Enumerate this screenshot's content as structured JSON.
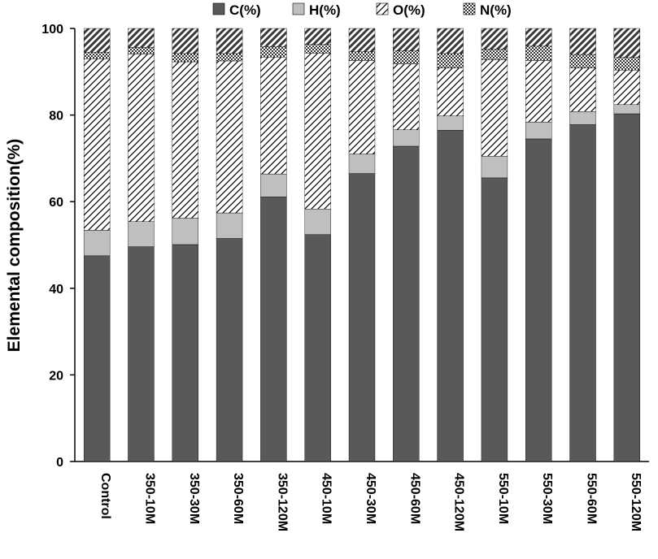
{
  "chart_data": {
    "type": "bar",
    "stacked": true,
    "ylabel": "Elemental composition(%)",
    "ylim": [
      0,
      100
    ],
    "yticks": [
      0,
      20,
      40,
      60,
      80,
      100
    ],
    "grid": false,
    "legend_position": "top",
    "categories": [
      "Control",
      "350-10M",
      "350-30M",
      "350-60M",
      "350-120M",
      "450-10M",
      "450-30M",
      "450-60M",
      "450-120M",
      "550-10M",
      "550-30M",
      "550-60M",
      "550-120M"
    ],
    "series": [
      {
        "name": "C(%)",
        "color": "#595959",
        "pattern": "solid",
        "values": [
          47.5,
          49.6,
          50.1,
          51.5,
          61.1,
          52.4,
          66.5,
          72.8,
          76.5,
          65.5,
          74.5,
          77.8,
          80.3
        ]
      },
      {
        "name": "H(%)",
        "color": "#bfbfbf",
        "pattern": "solid",
        "values": [
          5.9,
          5.8,
          6.1,
          5.9,
          5.3,
          5.9,
          4.5,
          3.8,
          3.3,
          5.0,
          3.9,
          3.0,
          2.1
        ]
      },
      {
        "name": "O(%)",
        "color": "#ffffff",
        "pattern": "diagonal-hatch",
        "values": [
          39.6,
          38.7,
          36.1,
          35.1,
          27.0,
          36.0,
          21.6,
          15.2,
          11.1,
          22.3,
          14.2,
          10.1,
          8.0
        ]
      },
      {
        "name": "N(%)",
        "color": "#ffffff",
        "pattern": "checker",
        "values": [
          1.5,
          1.5,
          1.9,
          1.7,
          2.4,
          2.0,
          2.0,
          3.0,
          3.3,
          2.4,
          3.3,
          3.1,
          2.9
        ]
      },
      {
        "name": "",
        "color": "#595959",
        "pattern": "diagonal-hatch-dark",
        "values": [
          5.5,
          4.4,
          5.8,
          5.8,
          4.2,
          3.7,
          5.4,
          5.2,
          5.8,
          4.8,
          4.1,
          6.0,
          6.7
        ]
      }
    ]
  }
}
